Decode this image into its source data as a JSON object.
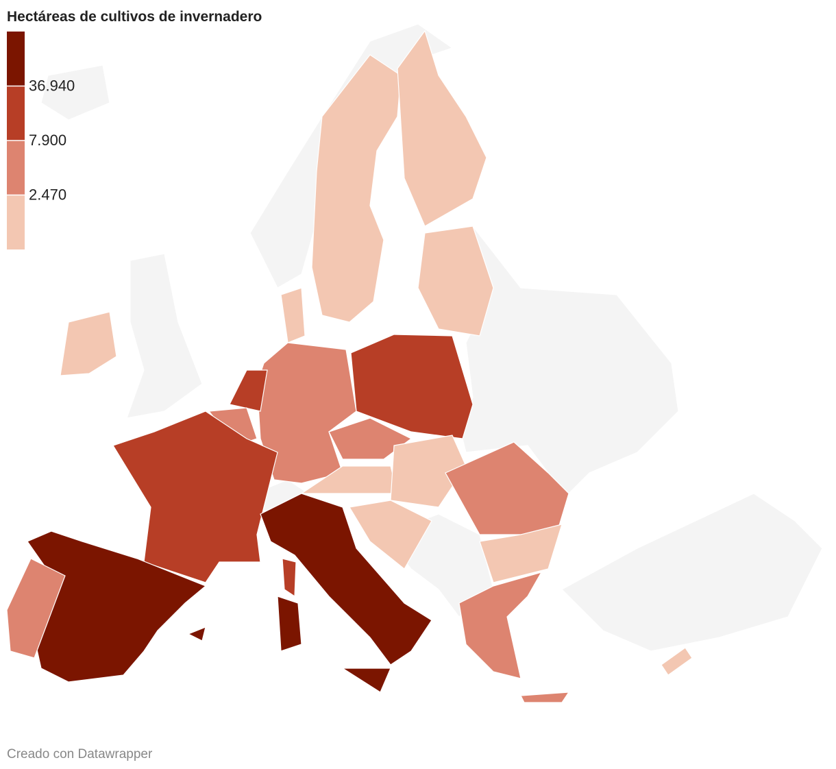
{
  "title": "Hectáreas de cultivos de invernadero",
  "legend": {
    "colors": [
      "#7b1500",
      "#b73e26",
      "#dd8470",
      "#f3c7b2"
    ],
    "thresholds": [
      {
        "value": 36940,
        "label": "36.940"
      },
      {
        "value": 7900,
        "label": "7.900"
      },
      {
        "value": 2470,
        "label": "2.470"
      }
    ]
  },
  "footer": "Creado con Datawrapper"
}
